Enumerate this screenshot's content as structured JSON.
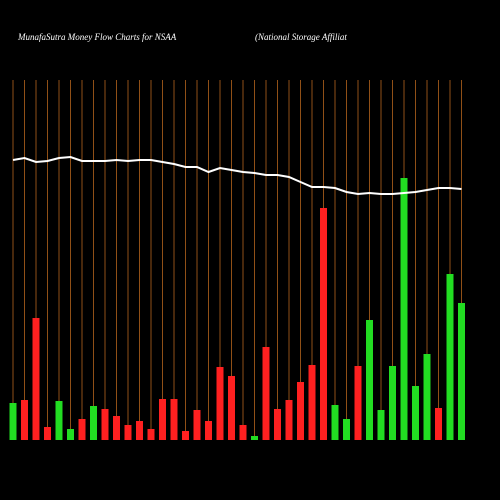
{
  "chart_data": {
    "type": "bar-line",
    "title": "MunafaSutra  Money Flow  Charts for NSAA",
    "subtitle": "(National Storage   Affiliat",
    "categories": [
      null,
      null,
      null,
      null,
      null,
      null,
      null,
      null,
      null,
      null,
      null,
      null,
      null,
      null,
      null,
      null,
      null,
      null,
      null,
      null,
      null,
      null,
      null,
      null,
      null,
      null,
      null,
      null,
      null,
      null,
      null,
      null,
      null,
      null,
      null,
      null,
      null,
      null,
      null,
      null
    ],
    "ylim": [
      0,
      360
    ],
    "grid_color": "#b5651d",
    "series": [
      {
        "kind": "bar",
        "values": [
          37,
          40,
          122,
          13,
          39,
          11,
          21,
          34,
          31,
          24,
          15,
          19,
          11,
          41,
          41,
          9,
          30,
          19,
          73,
          64,
          15,
          4,
          93,
          31,
          40,
          58,
          75,
          232,
          35,
          21,
          74,
          120,
          30,
          74,
          262,
          54,
          86,
          32,
          166,
          137
        ],
        "colors": [
          "#22dd22",
          "#ff2020",
          "#ff2020",
          "#ff2020",
          "#22dd22",
          "#22dd22",
          "#ff2020",
          "#22dd22",
          "#ff2020",
          "#ff2020",
          "#ff2020",
          "#ff2020",
          "#ff2020",
          "#ff2020",
          "#ff2020",
          "#ff2020",
          "#ff2020",
          "#ff2020",
          "#ff2020",
          "#ff2020",
          "#ff2020",
          "#22dd22",
          "#ff2020",
          "#ff2020",
          "#ff2020",
          "#ff2020",
          "#ff2020",
          "#ff2020",
          "#22dd22",
          "#22dd22",
          "#ff2020",
          "#22dd22",
          "#22dd22",
          "#22dd22",
          "#22dd22",
          "#22dd22",
          "#22dd22",
          "#ff2020",
          "#22dd22",
          "#22dd22"
        ]
      },
      {
        "kind": "line",
        "color": "#ffffff",
        "values": [
          280,
          282,
          278,
          279,
          282,
          283,
          279,
          279,
          279,
          280,
          279,
          280,
          280,
          278,
          276,
          273,
          273,
          268,
          272,
          270,
          268,
          267,
          265,
          265,
          263,
          258,
          253,
          253,
          252,
          248,
          246,
          247,
          246,
          246,
          247,
          248,
          250,
          252,
          252,
          251
        ]
      }
    ]
  }
}
